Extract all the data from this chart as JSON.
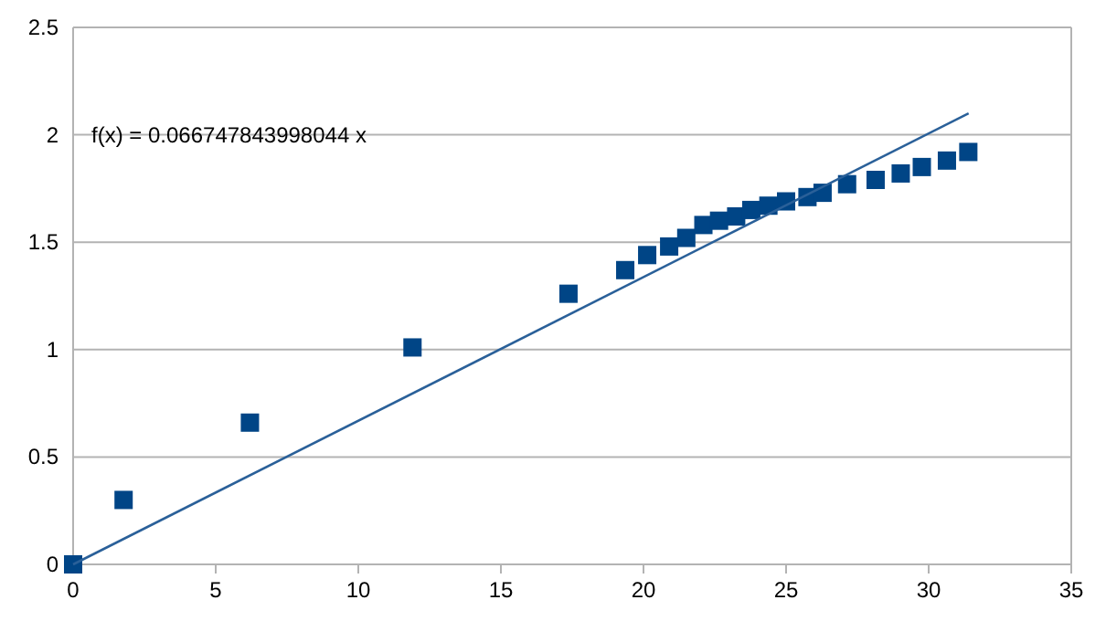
{
  "chart_data": {
    "type": "scatter",
    "xlim": [
      0,
      35
    ],
    "xticks": [
      0,
      5,
      10,
      15,
      20,
      25,
      30,
      35
    ],
    "ylim": [
      0,
      2.5
    ],
    "yticks": [
      0,
      0.5,
      1,
      1.5,
      2,
      2.5
    ],
    "grid": "y",
    "annotations": [
      "f(x) = 0.066747843998044 x"
    ],
    "series": [
      {
        "marker": "square",
        "color": "#004586",
        "x": [
          0,
          1.77,
          6.2,
          11.9,
          17.37,
          19.36,
          20.13,
          20.9,
          21.5,
          22.1,
          22.65,
          23.25,
          23.78,
          24.38,
          25.0,
          25.75,
          26.28,
          27.14,
          28.14,
          29.02,
          29.76,
          30.64,
          31.39
        ],
        "values": [
          0,
          0.3,
          0.66,
          1.01,
          1.26,
          1.37,
          1.44,
          1.48,
          1.52,
          1.58,
          1.6,
          1.62,
          1.65,
          1.67,
          1.69,
          1.71,
          1.73,
          1.77,
          1.79,
          1.82,
          1.85,
          1.88,
          1.92
        ]
      },
      {
        "type": "line",
        "color": "#2a6099",
        "x": [
          0,
          31.4
        ],
        "values": [
          0,
          2.1
        ]
      }
    ]
  }
}
